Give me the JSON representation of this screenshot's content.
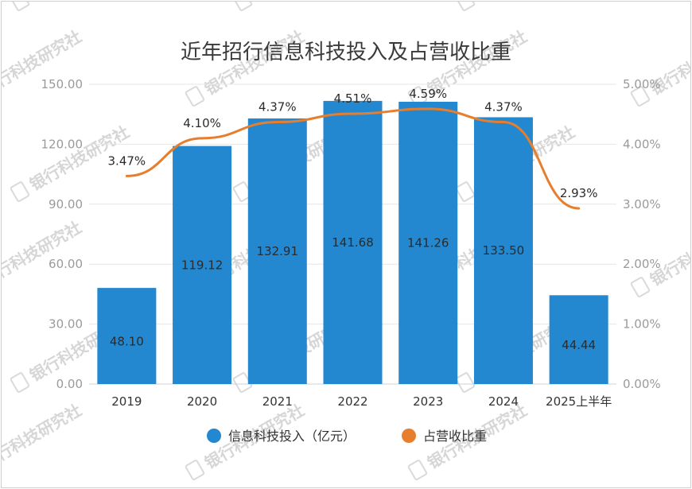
{
  "chart_data": {
    "type": "bar+line",
    "title": "近年招行信息科技投入及占营收比重",
    "categories": [
      "2019",
      "2020",
      "2021",
      "2022",
      "2023",
      "2024",
      "2025上半年"
    ],
    "series": [
      {
        "name": "信息科技投入（亿元）",
        "type": "bar",
        "axis": "left",
        "values": [
          48.1,
          119.12,
          132.91,
          141.68,
          141.26,
          133.5,
          44.44
        ],
        "labels": [
          "48.10",
          "119.12",
          "132.91",
          "141.68",
          "141.26",
          "133.50",
          "44.44"
        ]
      },
      {
        "name": "占营收比重",
        "type": "line",
        "axis": "right",
        "values": [
          3.47,
          4.1,
          4.37,
          4.51,
          4.59,
          4.37,
          2.93
        ],
        "labels": [
          "3.47%",
          "4.10%",
          "4.37%",
          "4.51%",
          "4.59%",
          "4.37%",
          "2.93%"
        ]
      }
    ],
    "y_left": {
      "min": 0,
      "max": 150,
      "ticks": [
        "0.00",
        "30.00",
        "60.00",
        "90.00",
        "120.00",
        "150.00"
      ]
    },
    "y_right": {
      "min": 0,
      "max": 5,
      "ticks": [
        "0.00%",
        "1.00%",
        "2.00%",
        "3.00%",
        "4.00%",
        "5.00%"
      ]
    },
    "grid": true,
    "legend_position": "bottom",
    "colors": {
      "bar": "#2388d0",
      "line": "#e67e2e",
      "grid": "#e6e6e6"
    }
  },
  "watermark": {
    "text": "银行科技研究社",
    "icon": "document-icon"
  }
}
